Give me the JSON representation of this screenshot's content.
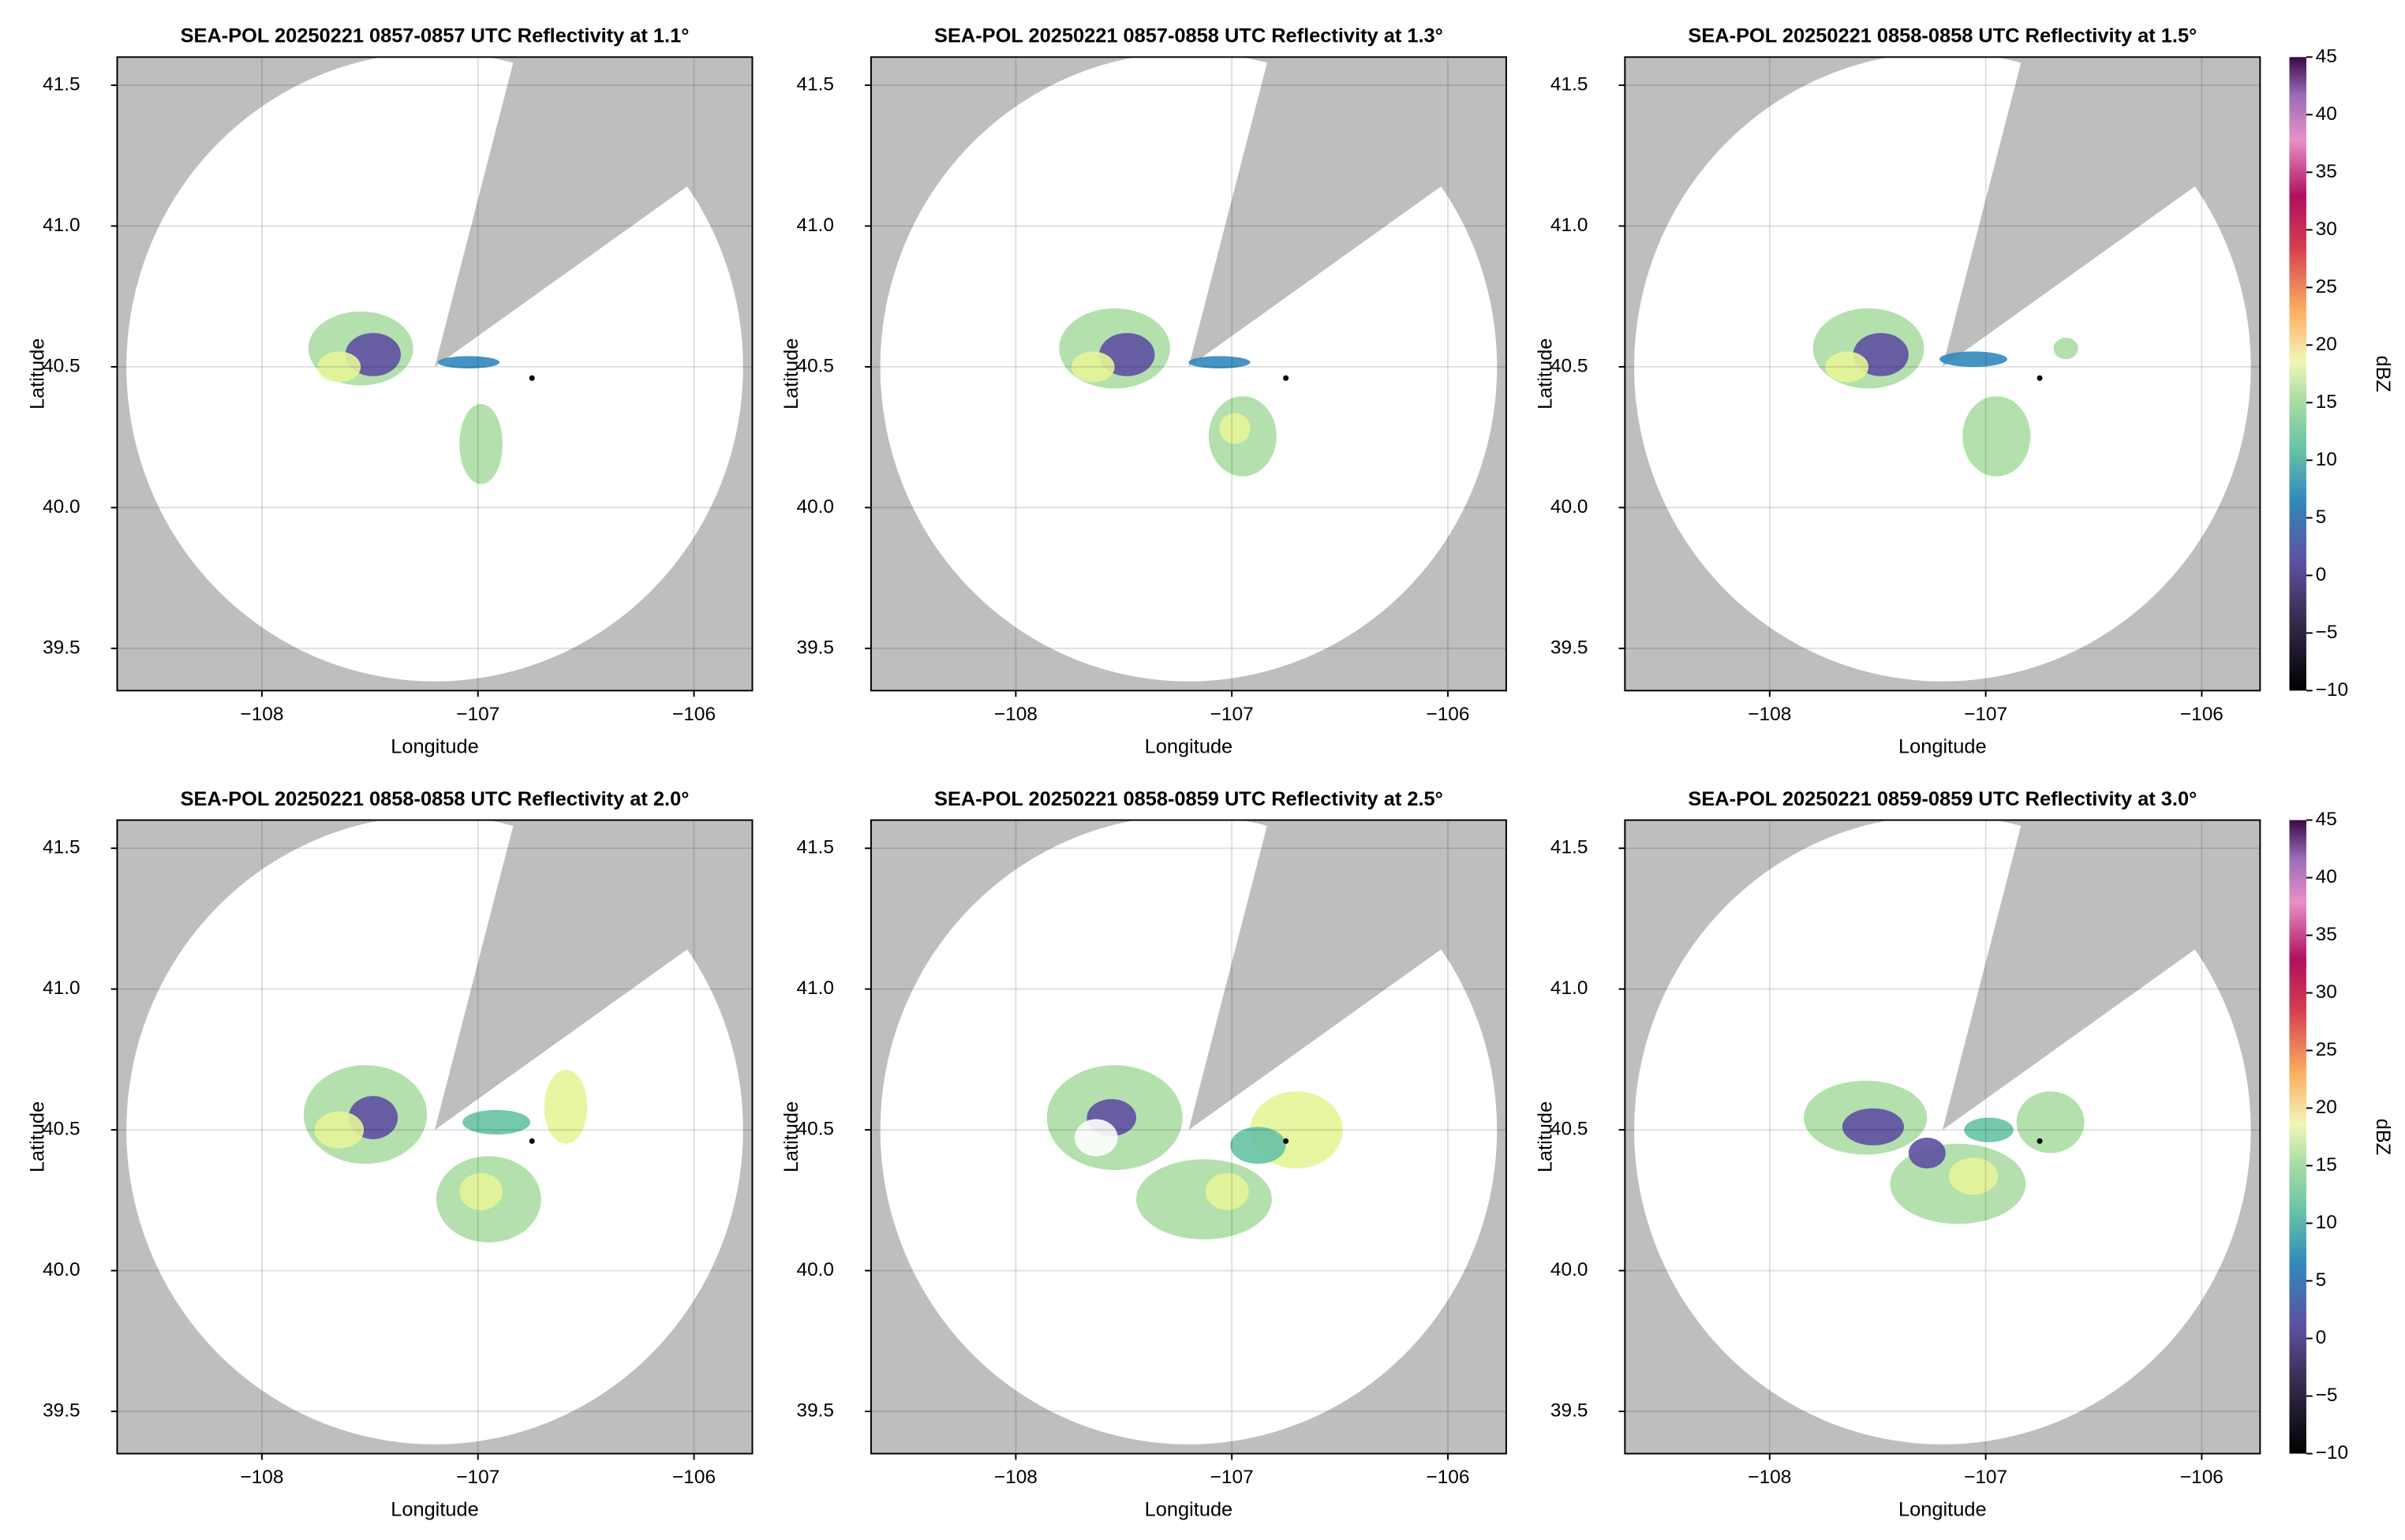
{
  "chart_data": [
    {
      "type": "radar",
      "title": "SEA-POL 20250221 0857-0857 UTC Reflectivity at 1.1°",
      "x_label": "Longitude",
      "y_label": "Latitude",
      "xlim": [
        -108.67,
        -105.73
      ],
      "ylim": [
        39.35,
        41.6
      ],
      "xticks": [
        {
          "value": -108,
          "label": "−108"
        },
        {
          "value": -107,
          "label": "−107"
        },
        {
          "value": -106,
          "label": "−106"
        }
      ],
      "yticks": [
        39.5,
        {
          "value": 40,
          "label": "40.0"
        },
        40.5,
        {
          "value": 41,
          "label": "41.0"
        },
        41.5
      ],
      "grid": true,
      "points": [
        {
          "x": -106.75,
          "y": 40.46
        }
      ]
    },
    {
      "type": "radar",
      "title": "SEA-POL 20250221 0857-0858 UTC Reflectivity at 1.3°",
      "x_label": "Longitude",
      "y_label": "Latitude",
      "xlim": [
        -108.67,
        -105.73
      ],
      "ylim": [
        39.35,
        41.6
      ],
      "xticks": [
        {
          "value": -108,
          "label": "−108"
        },
        {
          "value": -107,
          "label": "−107"
        },
        {
          "value": -106,
          "label": "−106"
        }
      ],
      "yticks": [
        39.5,
        {
          "value": 40,
          "label": "40.0"
        },
        40.5,
        {
          "value": 41,
          "label": "41.0"
        },
        41.5
      ],
      "grid": true,
      "points": [
        {
          "x": -106.75,
          "y": 40.46
        }
      ]
    },
    {
      "type": "radar",
      "title": "SEA-POL 20250221 0858-0858 UTC Reflectivity at 1.5°",
      "x_label": "Longitude",
      "y_label": "Latitude",
      "xlim": [
        -108.67,
        -105.73
      ],
      "ylim": [
        39.35,
        41.6
      ],
      "xticks": [
        {
          "value": -108,
          "label": "−108"
        },
        {
          "value": -107,
          "label": "−107"
        },
        {
          "value": -106,
          "label": "−106"
        }
      ],
      "yticks": [
        39.5,
        {
          "value": 40,
          "label": "40.0"
        },
        40.5,
        {
          "value": 41,
          "label": "41.0"
        },
        41.5
      ],
      "grid": true,
      "points": [
        {
          "x": -106.75,
          "y": 40.46
        }
      ],
      "colorbar": {
        "label": "dBZ",
        "lim": [
          -10,
          45
        ],
        "ticks": [
          {
            "value": -10,
            "label": "−10"
          },
          {
            "value": -5,
            "label": "−5"
          },
          0,
          5,
          10,
          15,
          20,
          25,
          30,
          35,
          40,
          45
        ]
      }
    },
    {
      "type": "radar",
      "title": "SEA-POL 20250221 0858-0858 UTC Reflectivity at 2.0°",
      "x_label": "Longitude",
      "y_label": "Latitude",
      "xlim": [
        -108.67,
        -105.73
      ],
      "ylim": [
        39.35,
        41.6
      ],
      "xticks": [
        {
          "value": -108,
          "label": "−108"
        },
        {
          "value": -107,
          "label": "−107"
        },
        {
          "value": -106,
          "label": "−106"
        }
      ],
      "yticks": [
        39.5,
        {
          "value": 40,
          "label": "40.0"
        },
        40.5,
        {
          "value": 41,
          "label": "41.0"
        },
        41.5
      ],
      "grid": true,
      "points": [
        {
          "x": -106.75,
          "y": 40.46
        }
      ]
    },
    {
      "type": "radar",
      "title": "SEA-POL 20250221 0858-0859 UTC Reflectivity at 2.5°",
      "x_label": "Longitude",
      "y_label": "Latitude",
      "xlim": [
        -108.67,
        -105.73
      ],
      "ylim": [
        39.35,
        41.6
      ],
      "xticks": [
        {
          "value": -108,
          "label": "−108"
        },
        {
          "value": -107,
          "label": "−107"
        },
        {
          "value": -106,
          "label": "−106"
        }
      ],
      "yticks": [
        39.5,
        {
          "value": 40,
          "label": "40.0"
        },
        40.5,
        {
          "value": 41,
          "label": "41.0"
        },
        41.5
      ],
      "grid": true,
      "points": [
        {
          "x": -106.75,
          "y": 40.46
        }
      ]
    },
    {
      "type": "radar",
      "title": "SEA-POL 20250221 0859-0859 UTC Reflectivity at 3.0°",
      "x_label": "Longitude",
      "y_label": "Latitude",
      "xlim": [
        -108.67,
        -105.73
      ],
      "ylim": [
        39.35,
        41.6
      ],
      "xticks": [
        {
          "value": -108,
          "label": "−108"
        },
        {
          "value": -107,
          "label": "−107"
        },
        {
          "value": -106,
          "label": "−106"
        }
      ],
      "yticks": [
        39.5,
        {
          "value": 40,
          "label": "40.0"
        },
        40.5,
        {
          "value": 41,
          "label": "41.0"
        },
        41.5
      ],
      "grid": true,
      "points": [
        {
          "x": -106.75,
          "y": 40.46
        }
      ],
      "colorbar": {
        "label": "dBZ",
        "lim": [
          -10,
          45
        ],
        "ticks": [
          {
            "value": -10,
            "label": "−10"
          },
          {
            "value": -5,
            "label": "−5"
          },
          0,
          5,
          10,
          15,
          20,
          25,
          30,
          35,
          40,
          45
        ]
      }
    }
  ]
}
